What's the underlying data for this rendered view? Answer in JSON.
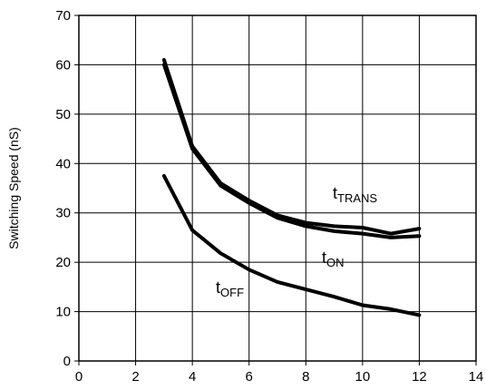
{
  "chart_data": {
    "type": "line",
    "title": "",
    "xlabel": "",
    "ylabel": "Switching Speed (nS)",
    "xlim": [
      0,
      14
    ],
    "ylim": [
      0,
      70
    ],
    "x_ticks": [
      "0",
      "2",
      "4",
      "6",
      "8",
      "10",
      "12",
      "14"
    ],
    "y_ticks": [
      "0",
      "10",
      "20",
      "30",
      "40",
      "50",
      "60",
      "70"
    ],
    "grid": true,
    "legend": "none",
    "series": [
      {
        "name": "tTRANS",
        "x": [
          3,
          4,
          5,
          6,
          7,
          8,
          9,
          10,
          11,
          12
        ],
        "values": [
          61,
          43.5,
          36,
          32.5,
          29.5,
          28,
          27.3,
          27,
          25.8,
          26.8
        ]
      },
      {
        "name": "tON",
        "x": [
          3,
          4,
          5,
          6,
          7,
          8,
          9,
          10,
          11,
          12
        ],
        "values": [
          60,
          43,
          35.5,
          32,
          29,
          27.3,
          26.3,
          25.8,
          25,
          25.3
        ]
      },
      {
        "name": "tOFF",
        "x": [
          3,
          4,
          5,
          6,
          7,
          8,
          9,
          10,
          11,
          12
        ],
        "values": [
          37.5,
          26.5,
          21.8,
          18.5,
          16,
          14.5,
          13,
          11.3,
          10.5,
          9.3
        ]
      }
    ],
    "annotations": [
      {
        "series": "tTRANS",
        "main": "t",
        "sub": "TRANS"
      },
      {
        "series": "tON",
        "main": "t",
        "sub": "ON"
      },
      {
        "series": "tOFF",
        "main": "t",
        "sub": "OFF"
      }
    ]
  }
}
